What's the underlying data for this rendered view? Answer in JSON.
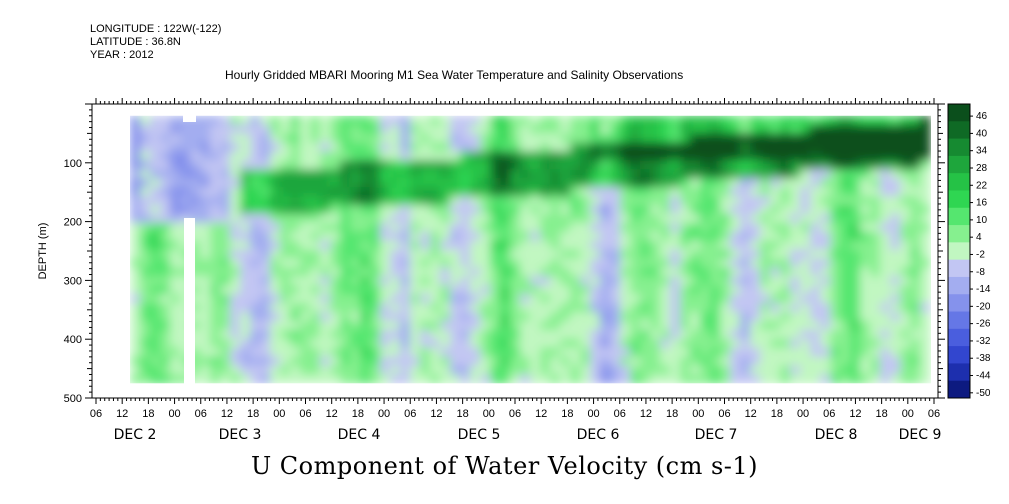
{
  "header": {
    "longitude": "LONGITUDE : 122W(-122)",
    "latitude": "LATITUDE : 36.8N",
    "year": "YEAR : 2012"
  },
  "chart_data": {
    "type": "heatmap",
    "title": "Hourly Gridded MBARI Mooring M1 Sea Water Temperature and Salinity Observations",
    "xlabel": "U Component of Water Velocity (cm s-1)",
    "ylabel": "DEPTH (m)",
    "ylim": [
      500,
      0
    ],
    "yticks": [
      "100",
      "200",
      "300",
      "400",
      "500"
    ],
    "x_hour_ticks": [
      "06",
      "12",
      "18",
      "00",
      "06",
      "12",
      "18",
      "00",
      "06",
      "12",
      "18",
      "00",
      "06",
      "12",
      "18",
      "00",
      "06",
      "12",
      "18",
      "00",
      "06",
      "12",
      "18",
      "00",
      "06",
      "12",
      "18",
      "00",
      "06",
      "12",
      "18",
      "00",
      "06"
    ],
    "x_date_labels": [
      "DEC 2",
      "DEC 3",
      "DEC 4",
      "DEC 5",
      "DEC 6",
      "DEC 7",
      "DEC 8",
      "DEC 9"
    ],
    "colorbar": {
      "levels": [
        "46",
        "40",
        "34",
        "28",
        "22",
        "16",
        "10",
        "4",
        "-2",
        "-8",
        "-14",
        "-20",
        "-26",
        "-32",
        "-38",
        "-44",
        "-50"
      ],
      "colors": {
        "strong_negative": "#0a0a70",
        "negative": "#2f55d8",
        "weak_negative": "#9aa6ee",
        "weak_positive": "#a6f5a6",
        "positive": "#2ad84a",
        "strong_positive": "#0a5a1e"
      }
    },
    "features": {
      "data_depth_range_m": [
        20,
        475
      ],
      "max_positive_band_depth_m": [
        100,
        180
      ],
      "grid": false,
      "legend": "right"
    }
  }
}
